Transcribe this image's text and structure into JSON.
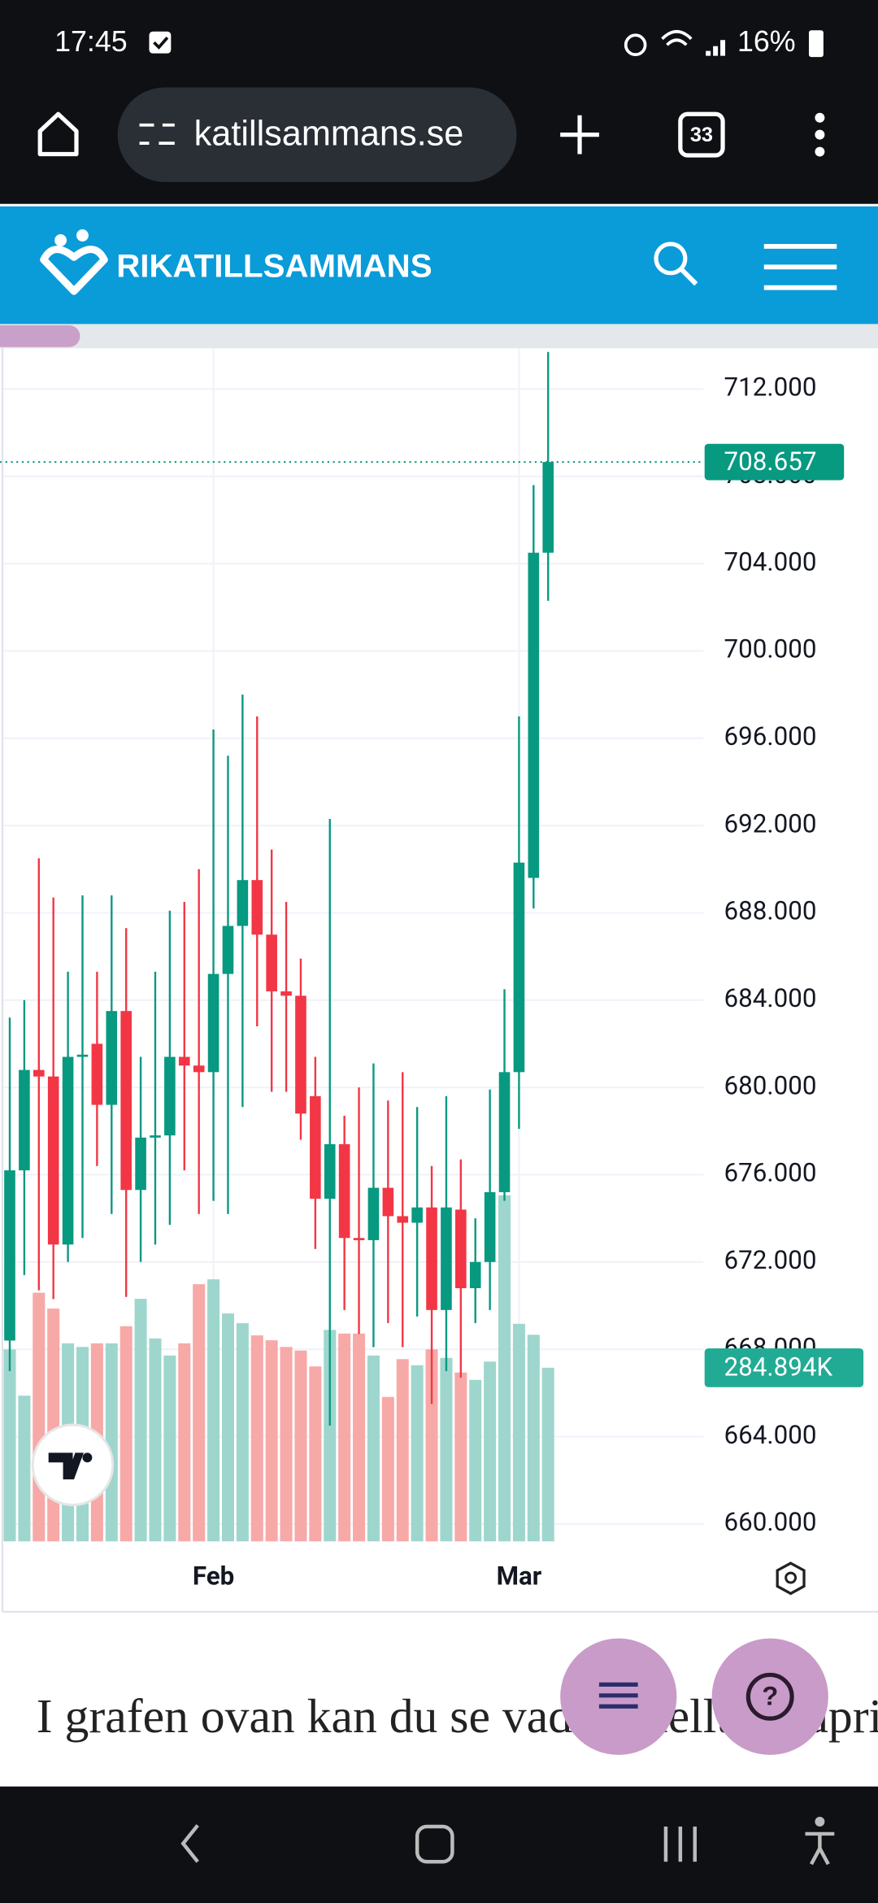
{
  "status": {
    "time": "17:45",
    "battery": "16%"
  },
  "browser": {
    "url": "katillsammans.se",
    "tabs": "33"
  },
  "site": {
    "logo": "RIKATILLSAMMANS"
  },
  "chart_data": {
    "type": "candlestick",
    "open": [
      668.4,
      676.2,
      680.8,
      680.5,
      672.8,
      681.4,
      682.0,
      679.2,
      683.5,
      675.3,
      677.7,
      677.8,
      681.4,
      681.0,
      680.7,
      685.2,
      687.4,
      689.5,
      687.0,
      684.4,
      684.2,
      679.6,
      674.9,
      677.4,
      673.1,
      673.0,
      675.4,
      674.1,
      673.8,
      674.5,
      669.8,
      674.4,
      670.8,
      672.0,
      675.2,
      680.7,
      689.6,
      704.5
    ],
    "high": [
      683.2,
      684.0,
      690.5,
      688.7,
      685.3,
      688.8,
      685.3,
      688.8,
      687.3,
      681.4,
      685.3,
      688.1,
      688.5,
      690.0,
      696.4,
      695.2,
      698.0,
      697.0,
      690.9,
      688.5,
      685.9,
      681.4,
      692.3,
      678.7,
      680.0,
      681.1,
      679.4,
      680.7,
      679.1,
      676.4,
      679.6,
      676.7,
      674.0,
      679.9,
      684.5,
      697.0,
      707.6,
      713.7
    ],
    "low": [
      667.0,
      671.4,
      670.7,
      670.3,
      672.0,
      673.1,
      676.4,
      674.2,
      670.4,
      672.0,
      672.8,
      673.7,
      676.2,
      674.2,
      674.8,
      674.2,
      679.1,
      682.8,
      679.8,
      679.8,
      677.6,
      672.6,
      664.5,
      669.8,
      668.7,
      668.1,
      669.2,
      668.1,
      669.5,
      665.5,
      667.0,
      666.7,
      669.2,
      669.8,
      674.8,
      678.1,
      688.2,
      702.3
    ],
    "close": [
      676.2,
      680.8,
      680.5,
      672.8,
      681.4,
      681.5,
      679.2,
      683.5,
      675.3,
      677.7,
      677.8,
      681.4,
      681.0,
      680.7,
      685.2,
      687.4,
      689.5,
      687.0,
      684.4,
      684.2,
      678.8,
      674.9,
      677.4,
      673.1,
      673.0,
      675.4,
      674.1,
      673.8,
      674.5,
      669.8,
      674.5,
      670.8,
      672.0,
      675.2,
      680.7,
      690.3,
      704.5,
      708.657
    ],
    "up_color": "#089981",
    "down_color": "#f23645",
    "volume": {
      "axis": "y2",
      "up_color": "#9ed6cd",
      "down_color": "#f7a9a7",
      "values": [
        315000,
        239000,
        408000,
        382000,
        325000,
        319000,
        325000,
        325000,
        353000,
        398000,
        333000,
        305000,
        325000,
        422000,
        430000,
        374000,
        358000,
        338000,
        330000,
        319000,
        313000,
        287000,
        347000,
        341000,
        341000,
        305000,
        237000,
        299000,
        289000,
        315000,
        301000,
        277000,
        265000,
        295000,
        568000,
        357000,
        339000,
        284894
      ],
      "value_labels": [
        null,
        null,
        null,
        null,
        null,
        null,
        null,
        null,
        null,
        null,
        null,
        null,
        null,
        null,
        null,
        null,
        null,
        null,
        null,
        null,
        null,
        null,
        null,
        null,
        null,
        null,
        null,
        null,
        null,
        null,
        null,
        null,
        null,
        null,
        null,
        null,
        null,
        "284.894K"
      ]
    },
    "xlim": [
      -0.67,
      47.67
    ],
    "xticks": [
      {
        "value": 14,
        "label": "Feb"
      },
      {
        "value": 35,
        "label": "Mar"
      }
    ],
    "ylim": [
      659.2,
      713.7
    ],
    "yticks": [
      {
        "value": 660,
        "label": "660.000"
      },
      {
        "value": 664,
        "label": "664.000"
      },
      {
        "value": 668,
        "label": "668.000"
      },
      {
        "value": 672,
        "label": "672.000"
      },
      {
        "value": 676,
        "label": "676.000"
      },
      {
        "value": 680,
        "label": "680.000"
      },
      {
        "value": 684,
        "label": "684.000"
      },
      {
        "value": 688,
        "label": "688.000"
      },
      {
        "value": 692,
        "label": "692.000"
      },
      {
        "value": 696,
        "label": "696.000"
      },
      {
        "value": 700,
        "label": "700.000"
      },
      {
        "value": 704,
        "label": "704.000"
      },
      {
        "value": 708,
        "label": "708.000"
      },
      {
        "value": 712,
        "label": "712.000"
      }
    ],
    "y2lim": [
      0,
      1952000
    ],
    "grid": true
  },
  "article": {
    "text": "I grafen ovan kan du se vad aktuellt guldpris är per gram just nu. Håll"
  }
}
